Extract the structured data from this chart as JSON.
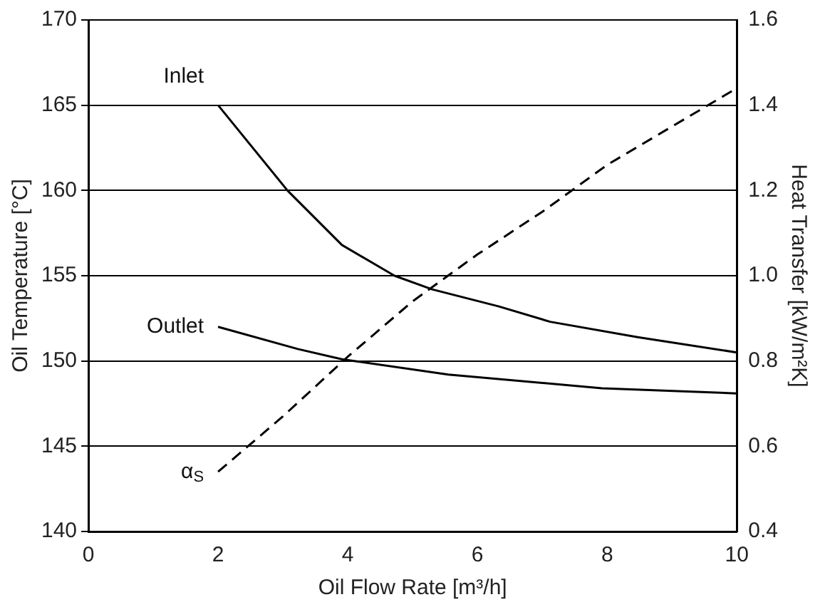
{
  "chart_data": {
    "type": "line",
    "xlabel": "Oil Flow Rate [m³/h]",
    "ylabel": "Oil Temperature [°C]",
    "y2label": "Heat Transfer [kW/m²K]",
    "xlim": [
      0,
      10
    ],
    "xticks": [
      0,
      2,
      4,
      6,
      8,
      10
    ],
    "ylim": [
      140,
      170
    ],
    "yticks": [
      140,
      145,
      150,
      155,
      160,
      165,
      170
    ],
    "y2lim": [
      0.4,
      1.6
    ],
    "y2ticks": [
      {
        "value": 0.4,
        "label": "0.4"
      },
      {
        "value": 0.6,
        "label": "0.6"
      },
      {
        "value": 0.8,
        "label": "0.8"
      },
      {
        "value": 1,
        "label": "1.0"
      },
      {
        "value": 1.2,
        "label": "1.2"
      },
      {
        "value": 1.4,
        "label": "1.4"
      },
      {
        "value": 1.6,
        "label": "1.6"
      }
    ],
    "grid": "y",
    "legend": false,
    "marker": "none",
    "series": [
      {
        "name": "Inlet",
        "color": "#000000",
        "line_style": "solid",
        "x": [
          2,
          3.07,
          3.91,
          4.72,
          5.3,
          6.33,
          7.12,
          8.47,
          10
        ],
        "values": [
          165,
          160,
          156.8,
          155,
          154.2,
          153.2,
          152.3,
          151.4,
          150.5
        ]
      },
      {
        "name": "Outlet",
        "color": "#000000",
        "line_style": "solid",
        "x": [
          2,
          3.23,
          3.91,
          5.55,
          7.92,
          10
        ],
        "values": [
          152,
          150.7,
          150.1,
          149.2,
          148.4,
          148.1
        ]
      },
      {
        "name": "α$_{S}$",
        "color": "#000000",
        "line_style": "dashed",
        "axis": "y2",
        "x": [
          2,
          3,
          4,
          5,
          6,
          7,
          8,
          9,
          10
        ],
        "values": [
          0.54,
          0.67,
          0.81,
          0.94,
          1.05,
          1.15,
          1.26,
          1.35,
          1.44
        ]
      }
    ]
  }
}
